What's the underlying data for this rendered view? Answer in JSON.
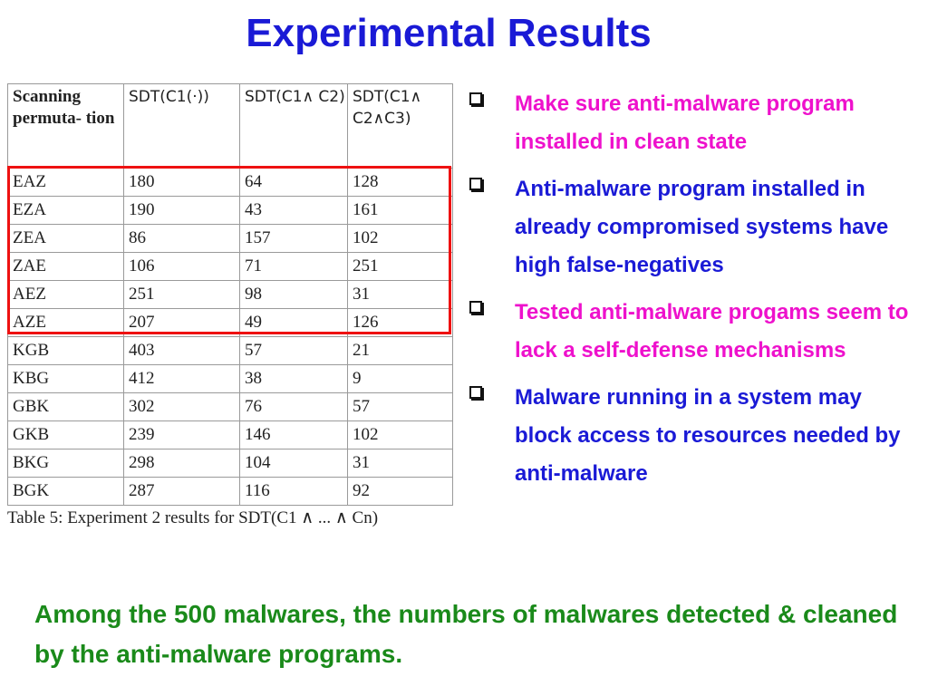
{
  "title": "Experimental Results",
  "table": {
    "headers": [
      "Scanning permuta- tion",
      "SDT(C1(·))",
      "SDT(C1∧ C2)",
      "SDT(C1∧ C2∧C3)"
    ],
    "rows": [
      [
        "EAZ",
        "180",
        "64",
        "128"
      ],
      [
        "EZA",
        "190",
        "43",
        "161"
      ],
      [
        "ZEA",
        "86",
        "157",
        "102"
      ],
      [
        "ZAE",
        "106",
        "71",
        "251"
      ],
      [
        "AEZ",
        "251",
        "98",
        "31"
      ],
      [
        "AZE",
        "207",
        "49",
        "126"
      ],
      [
        "KGB",
        "403",
        "57",
        "21"
      ],
      [
        "KBG",
        "412",
        "38",
        "9"
      ],
      [
        "GBK",
        "302",
        "76",
        "57"
      ],
      [
        "GKB",
        "239",
        "146",
        "102"
      ],
      [
        "BKG",
        "298",
        "104",
        "31"
      ],
      [
        "BGK",
        "287",
        "116",
        "92"
      ]
    ],
    "caption": "Table 5: Experiment 2 results for SDT(C1 ∧ ... ∧ Cn)"
  },
  "bullets": [
    {
      "text": "Make sure anti-malware program installed in clean state",
      "color": "#ee11cc"
    },
    {
      "text": "Anti-malware program installed in already compromised systems have high false-negatives",
      "color": "#1a1ad6"
    },
    {
      "text": "Tested anti-malware progams seem to lack a self-defense mechanisms",
      "color": "#ee11cc"
    },
    {
      "text": "Malware running in a system may block access to resources needed by anti-malware",
      "color": "#1a1ad6"
    }
  ],
  "footer": "Among the 500 malwares, the numbers of malwares detected & cleaned by the anti-malware programs.",
  "colors": {
    "title": "#1a1ad6",
    "highlight_box": "#ee1111",
    "footer": "#1a8a1a"
  },
  "icons": {
    "bullet": "checkbox-square-icon"
  }
}
